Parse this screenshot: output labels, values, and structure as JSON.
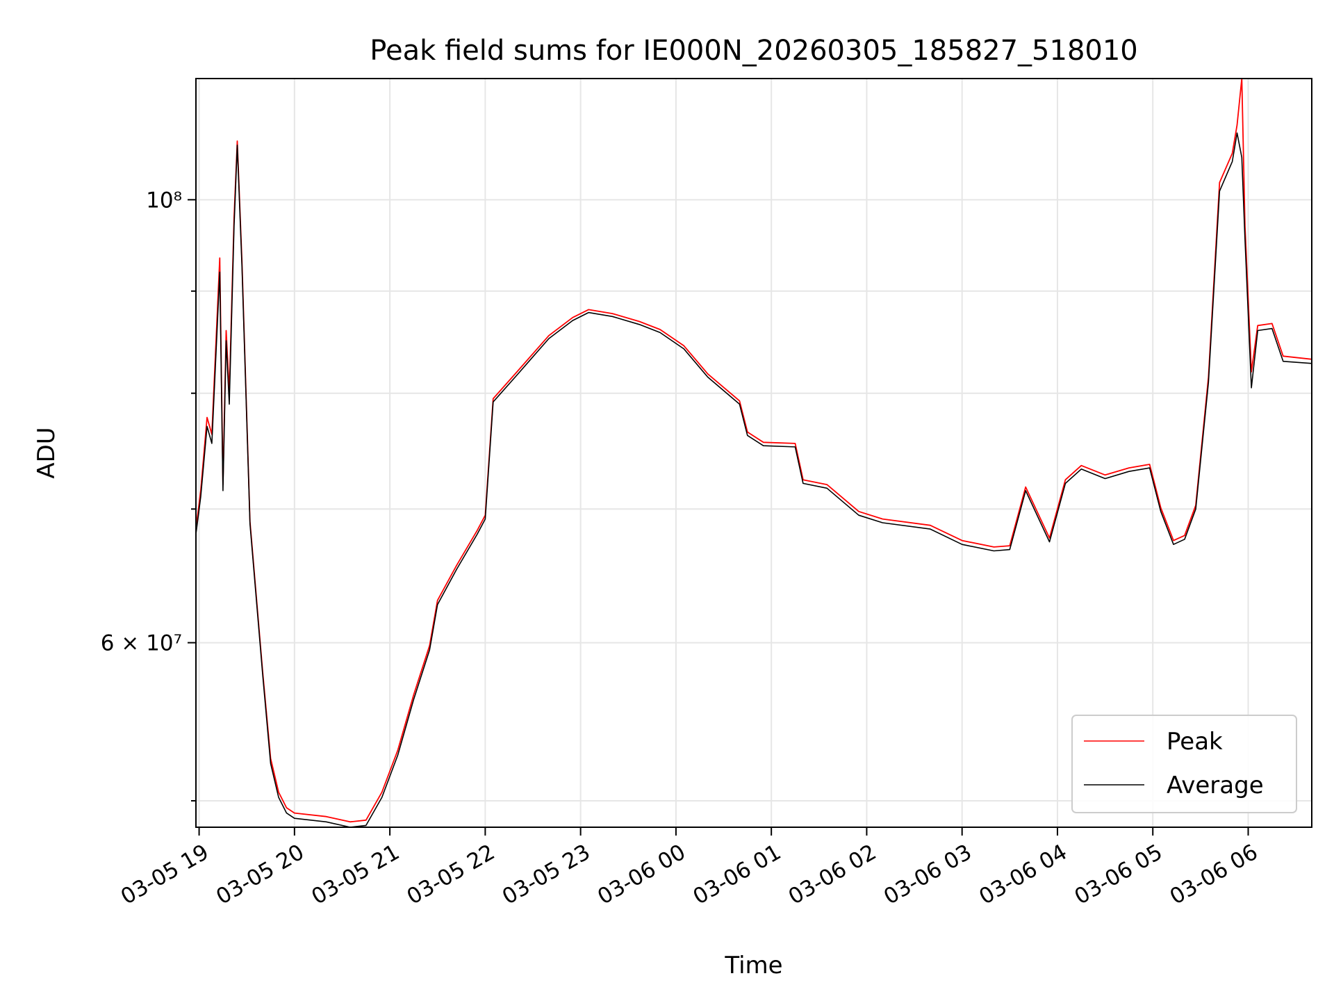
{
  "chart_data": {
    "type": "line",
    "title": "Peak field sums for IE000N_20260305_185827_518010",
    "xlabel": "Time",
    "ylabel": "ADU",
    "x_axis_type": "time",
    "xlim": [
      "2026-03-05 18:58",
      "2026-03-06 06:40"
    ],
    "yscale": "log",
    "ylim": [
      48500000,
      115000000
    ],
    "grid": true,
    "legend_position": "lower-right",
    "x_ticks": [
      "03-05 19",
      "03-05 20",
      "03-05 21",
      "03-05 22",
      "03-05 23",
      "03-06 00",
      "03-06 01",
      "03-06 02",
      "03-06 03",
      "03-06 04",
      "03-06 05",
      "03-06 06"
    ],
    "y_ticks": [
      {
        "value": 60000000,
        "label": "6 × 10⁷"
      },
      {
        "value": 100000000,
        "label": "10⁸"
      }
    ],
    "series": [
      {
        "name": "Peak",
        "color": "#ff0000",
        "points": [
          [
            "2026-03-05 18:58",
            68400000
          ],
          [
            "2026-03-05 19:01",
            71500000
          ],
          [
            "2026-03-05 19:05",
            77800000
          ],
          [
            "2026-03-05 19:08",
            76300000
          ],
          [
            "2026-03-05 19:13",
            93500000
          ],
          [
            "2026-03-05 19:15",
            72000000
          ],
          [
            "2026-03-05 19:17",
            86000000
          ],
          [
            "2026-03-05 19:19",
            80000000
          ],
          [
            "2026-03-05 19:22",
            98000000
          ],
          [
            "2026-03-05 19:24",
            107000000
          ],
          [
            "2026-03-05 19:27",
            93000000
          ],
          [
            "2026-03-05 19:32",
            69000000
          ],
          [
            "2026-03-05 19:40",
            58000000
          ],
          [
            "2026-03-05 19:45",
            52500000
          ],
          [
            "2026-03-05 19:50",
            50500000
          ],
          [
            "2026-03-05 19:55",
            49600000
          ],
          [
            "2026-03-05 20:00",
            49300000
          ],
          [
            "2026-03-05 20:20",
            49100000
          ],
          [
            "2026-03-05 20:35",
            48800000
          ],
          [
            "2026-03-05 20:45",
            48900000
          ],
          [
            "2026-03-05 20:55",
            50500000
          ],
          [
            "2026-03-05 21:05",
            53000000
          ],
          [
            "2026-03-05 21:15",
            56500000
          ],
          [
            "2026-03-05 21:25",
            59800000
          ],
          [
            "2026-03-05 21:30",
            63000000
          ],
          [
            "2026-03-05 21:42",
            65600000
          ],
          [
            "2026-03-05 21:55",
            68300000
          ],
          [
            "2026-03-05 22:00",
            69500000
          ],
          [
            "2026-03-05 22:05",
            79500000
          ],
          [
            "2026-03-05 22:20",
            82000000
          ],
          [
            "2026-03-05 22:40",
            85500000
          ],
          [
            "2026-03-05 22:55",
            87300000
          ],
          [
            "2026-03-05 23:05",
            88100000
          ],
          [
            "2026-03-05 23:20",
            87700000
          ],
          [
            "2026-03-05 23:37",
            86900000
          ],
          [
            "2026-03-05 23:50",
            86100000
          ],
          [
            "2026-03-06 00:05",
            84500000
          ],
          [
            "2026-03-06 00:20",
            81800000
          ],
          [
            "2026-03-06 00:40",
            79300000
          ],
          [
            "2026-03-06 00:45",
            76500000
          ],
          [
            "2026-03-06 00:55",
            75600000
          ],
          [
            "2026-03-06 01:15",
            75500000
          ],
          [
            "2026-03-06 01:20",
            72400000
          ],
          [
            "2026-03-06 01:35",
            72000000
          ],
          [
            "2026-03-06 01:55",
            69800000
          ],
          [
            "2026-03-06 02:10",
            69200000
          ],
          [
            "2026-03-06 02:40",
            68700000
          ],
          [
            "2026-03-06 03:00",
            67500000
          ],
          [
            "2026-03-06 03:20",
            67000000
          ],
          [
            "2026-03-06 03:30",
            67100000
          ],
          [
            "2026-03-06 03:40",
            71800000
          ],
          [
            "2026-03-06 03:55",
            67700000
          ],
          [
            "2026-03-06 04:05",
            72400000
          ],
          [
            "2026-03-06 04:15",
            73600000
          ],
          [
            "2026-03-06 04:30",
            72800000
          ],
          [
            "2026-03-06 04:45",
            73400000
          ],
          [
            "2026-03-06 04:58",
            73700000
          ],
          [
            "2026-03-06 05:05",
            70100000
          ],
          [
            "2026-03-06 05:13",
            67500000
          ],
          [
            "2026-03-06 05:20",
            67900000
          ],
          [
            "2026-03-06 05:27",
            70300000
          ],
          [
            "2026-03-06 05:35",
            81500000
          ],
          [
            "2026-03-06 05:42",
            102000000
          ],
          [
            "2026-03-06 05:50",
            105500000
          ],
          [
            "2026-03-06 05:53",
            109000000
          ],
          [
            "2026-03-06 05:56",
            115000000
          ],
          [
            "2026-03-06 05:58",
            97000000
          ],
          [
            "2026-03-06 06:02",
            82000000
          ],
          [
            "2026-03-06 06:06",
            86500000
          ],
          [
            "2026-03-06 06:15",
            86700000
          ],
          [
            "2026-03-06 06:22",
            83500000
          ],
          [
            "2026-03-06 06:40",
            83200000
          ]
        ]
      },
      {
        "name": "Average",
        "color": "#000000",
        "points": [
          [
            "2026-03-05 18:58",
            68000000
          ],
          [
            "2026-03-05 19:01",
            71000000
          ],
          [
            "2026-03-05 19:05",
            77000000
          ],
          [
            "2026-03-05 19:08",
            75500000
          ],
          [
            "2026-03-05 19:13",
            92000000
          ],
          [
            "2026-03-05 19:15",
            71500000
          ],
          [
            "2026-03-05 19:17",
            85000000
          ],
          [
            "2026-03-05 19:19",
            79000000
          ],
          [
            "2026-03-05 19:22",
            97000000
          ],
          [
            "2026-03-05 19:24",
            106500000
          ],
          [
            "2026-03-05 19:27",
            92500000
          ],
          [
            "2026-03-05 19:32",
            68800000
          ],
          [
            "2026-03-05 19:40",
            57800000
          ],
          [
            "2026-03-05 19:45",
            52200000
          ],
          [
            "2026-03-05 19:50",
            50200000
          ],
          [
            "2026-03-05 19:55",
            49300000
          ],
          [
            "2026-03-05 20:00",
            49000000
          ],
          [
            "2026-03-05 20:20",
            48800000
          ],
          [
            "2026-03-05 20:35",
            48500000
          ],
          [
            "2026-03-05 20:45",
            48600000
          ],
          [
            "2026-03-05 20:55",
            50200000
          ],
          [
            "2026-03-05 21:05",
            52700000
          ],
          [
            "2026-03-05 21:15",
            56200000
          ],
          [
            "2026-03-05 21:25",
            59500000
          ],
          [
            "2026-03-05 21:30",
            62700000
          ],
          [
            "2026-03-05 21:42",
            65300000
          ],
          [
            "2026-03-05 21:55",
            68000000
          ],
          [
            "2026-03-05 22:00",
            69200000
          ],
          [
            "2026-03-05 22:05",
            79200000
          ],
          [
            "2026-03-05 22:20",
            81700000
          ],
          [
            "2026-03-05 22:40",
            85200000
          ],
          [
            "2026-03-05 22:55",
            87000000
          ],
          [
            "2026-03-05 23:05",
            87800000
          ],
          [
            "2026-03-05 23:20",
            87400000
          ],
          [
            "2026-03-05 23:37",
            86600000
          ],
          [
            "2026-03-05 23:50",
            85800000
          ],
          [
            "2026-03-06 00:05",
            84200000
          ],
          [
            "2026-03-06 00:20",
            81500000
          ],
          [
            "2026-03-06 00:40",
            79000000
          ],
          [
            "2026-03-06 00:45",
            76200000
          ],
          [
            "2026-03-06 00:55",
            75300000
          ],
          [
            "2026-03-06 01:15",
            75200000
          ],
          [
            "2026-03-06 01:20",
            72100000
          ],
          [
            "2026-03-06 01:35",
            71700000
          ],
          [
            "2026-03-06 01:55",
            69500000
          ],
          [
            "2026-03-06 02:10",
            68900000
          ],
          [
            "2026-03-06 02:40",
            68400000
          ],
          [
            "2026-03-06 03:00",
            67200000
          ],
          [
            "2026-03-06 03:20",
            66700000
          ],
          [
            "2026-03-06 03:30",
            66800000
          ],
          [
            "2026-03-06 03:40",
            71500000
          ],
          [
            "2026-03-06 03:55",
            67400000
          ],
          [
            "2026-03-06 04:05",
            72100000
          ],
          [
            "2026-03-06 04:15",
            73300000
          ],
          [
            "2026-03-06 04:30",
            72500000
          ],
          [
            "2026-03-06 04:45",
            73100000
          ],
          [
            "2026-03-06 04:58",
            73400000
          ],
          [
            "2026-03-06 05:05",
            69800000
          ],
          [
            "2026-03-06 05:13",
            67200000
          ],
          [
            "2026-03-06 05:20",
            67600000
          ],
          [
            "2026-03-06 05:27",
            70000000
          ],
          [
            "2026-03-06 05:35",
            81000000
          ],
          [
            "2026-03-06 05:42",
            101000000
          ],
          [
            "2026-03-06 05:50",
            104500000
          ],
          [
            "2026-03-06 05:53",
            108000000
          ],
          [
            "2026-03-06 05:56",
            105000000
          ],
          [
            "2026-03-06 05:58",
            95500000
          ],
          [
            "2026-03-06 06:02",
            80500000
          ],
          [
            "2026-03-06 06:06",
            86000000
          ],
          [
            "2026-03-06 06:15",
            86200000
          ],
          [
            "2026-03-06 06:22",
            83000000
          ],
          [
            "2026-03-06 06:40",
            82800000
          ]
        ]
      }
    ]
  }
}
